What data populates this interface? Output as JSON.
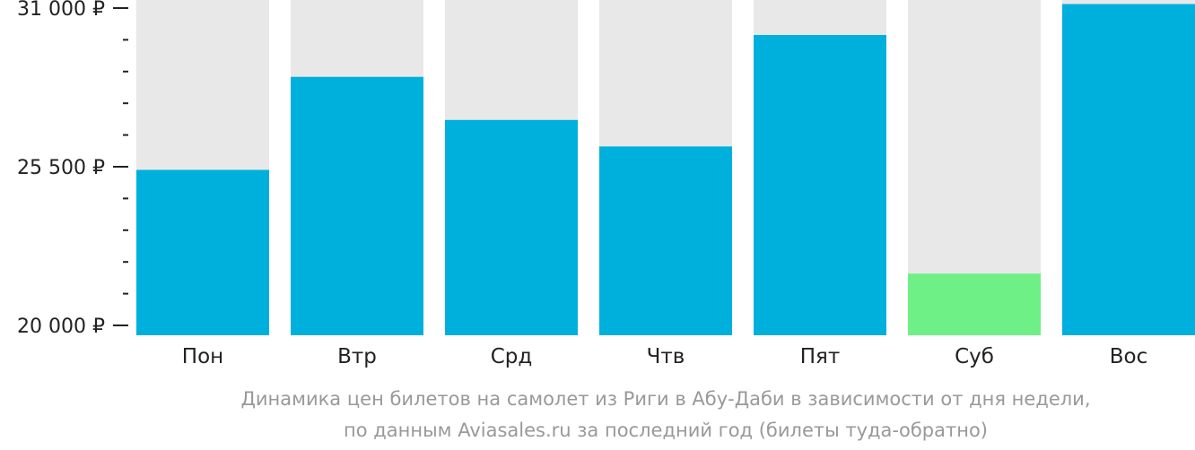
{
  "chart_data": {
    "type": "bar",
    "categories": [
      "Пон",
      "Втр",
      "Срд",
      "Чтв",
      "Пят",
      "Суб",
      "Вос"
    ],
    "values": [
      25391,
      28615,
      27122,
      26203,
      30068,
      21796,
      31140
    ],
    "ylim": [
      20000,
      31000
    ],
    "yticks": [
      {
        "value": 20000,
        "label": "20 000 ₽"
      },
      {
        "value": 25500,
        "label": "25 500 ₽"
      },
      {
        "value": 31000,
        "label": "31 000 ₽"
      }
    ],
    "minor_ytick_step": 1100,
    "colors": {
      "bar": "#00b0dc",
      "min_bar": "#6ef086",
      "track": "#e8e8e8",
      "tick": "#222222"
    },
    "highlight_min": true,
    "grid": false,
    "legend": "none"
  },
  "caption": {
    "line1": "Динамика цен билетов на самолет из Риги в Абу-Даби в зависимости от дня недели,",
    "line2": "по данным Aviasales.ru за последний год (билеты туда-обратно)"
  }
}
